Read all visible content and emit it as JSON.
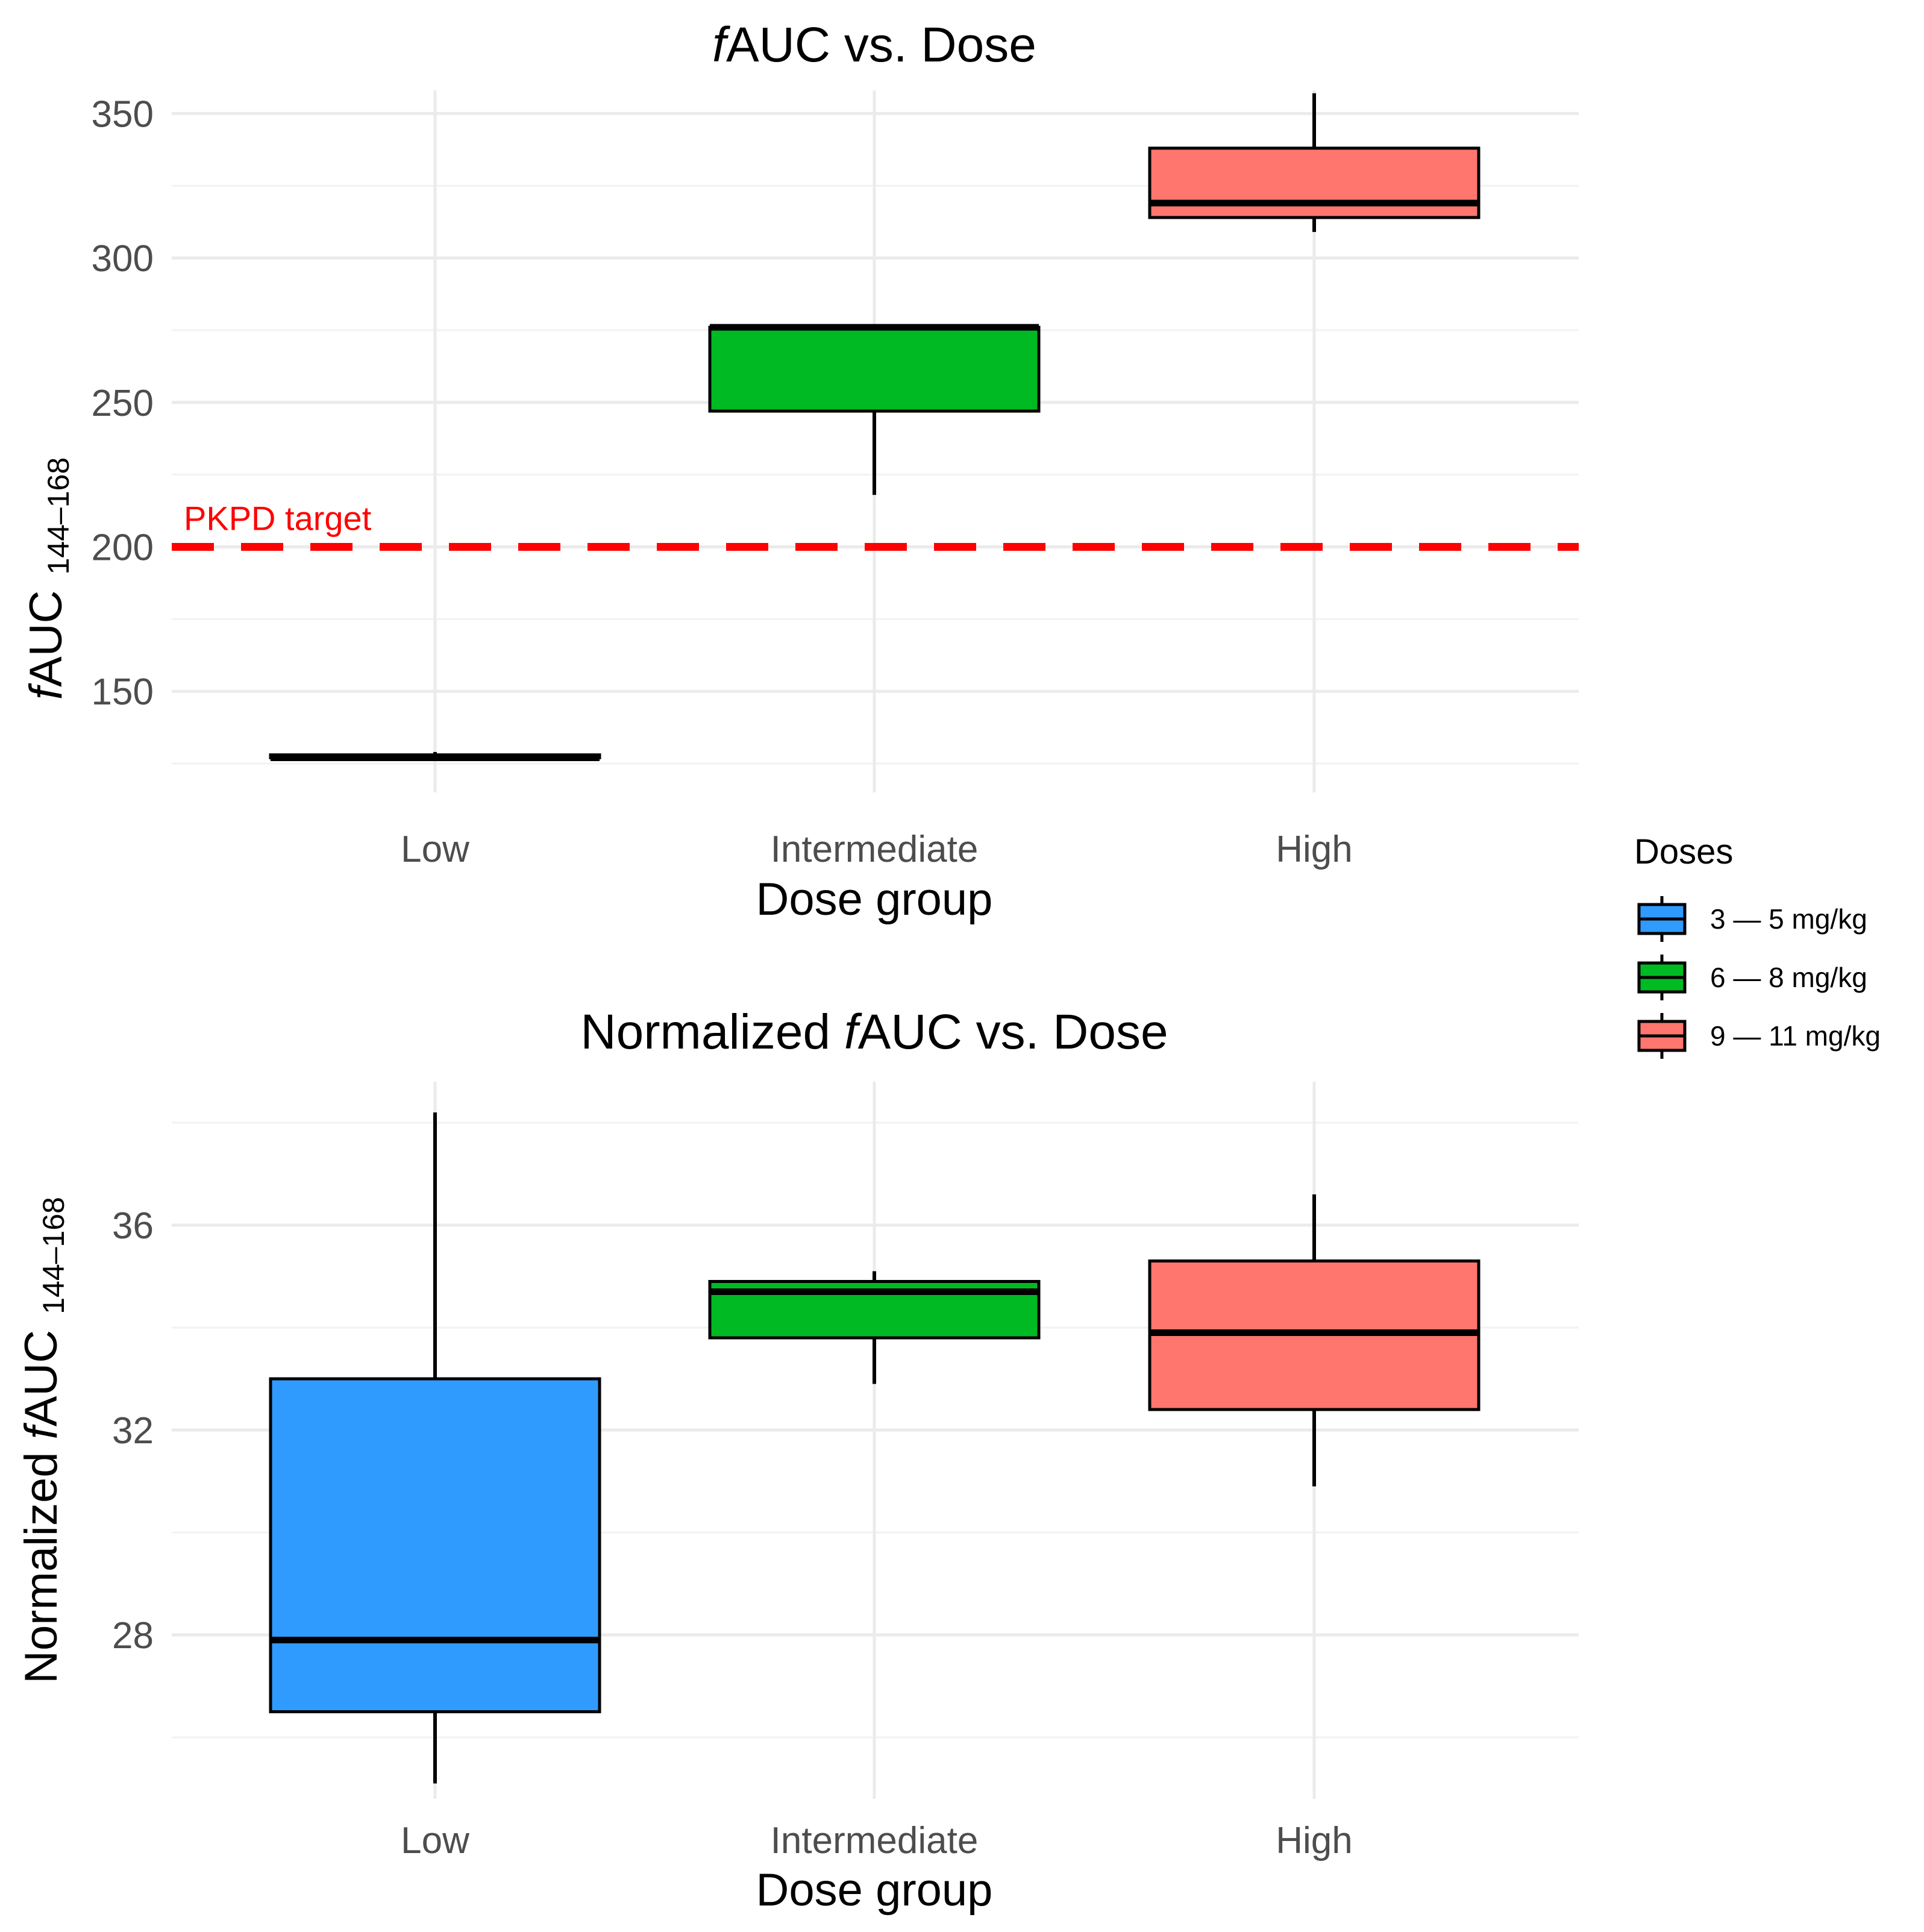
{
  "chart_data": [
    {
      "type": "box",
      "title_prefix": "f",
      "title": "AUC vs. Dose",
      "xlabel": "Dose group",
      "ylabel_prefix": "f",
      "ylabel_main": "AUC",
      "ylabel_sub": "144–168",
      "categories": [
        "Low",
        "Intermediate",
        "High"
      ],
      "ylim": [
        115,
        358
      ],
      "yticks": [
        150,
        200,
        250,
        300,
        350
      ],
      "yminor": [
        125,
        175,
        225,
        275,
        325
      ],
      "boxes": [
        {
          "category": "Low",
          "whisker_low": 127,
          "q1": 127,
          "median": 127,
          "q3": 128,
          "whisker_high": 129
        },
        {
          "category": "Intermediate",
          "whisker_low": 218,
          "q1": 247,
          "median": 276,
          "q3": 276,
          "whisker_high": 276
        },
        {
          "category": "High",
          "whisker_low": 309,
          "q1": 314,
          "median": 319,
          "q3": 338,
          "whisker_high": 357
        }
      ],
      "reference_line": {
        "y": 200,
        "label": "PKPD target",
        "color": "#ff0000"
      }
    },
    {
      "type": "box",
      "title_main": "Normalized ",
      "title_prefix": "f",
      "title": "AUC vs. Dose",
      "xlabel": "Dose group",
      "ylabel_main_pre": "Normalized ",
      "ylabel_prefix": "f",
      "ylabel_main": "AUC",
      "ylabel_sub": "144–168",
      "categories": [
        "Low",
        "Intermediate",
        "High"
      ],
      "ylim": [
        24.8,
        38.8
      ],
      "yticks": [
        28,
        32,
        36
      ],
      "yminor": [
        26,
        30,
        34,
        38
      ],
      "boxes": [
        {
          "category": "Low",
          "whisker_low": 25.1,
          "q1": 26.5,
          "median": 27.9,
          "q3": 33.0,
          "whisker_high": 38.2
        },
        {
          "category": "Intermediate",
          "whisker_low": 32.9,
          "q1": 33.8,
          "median": 34.7,
          "q3": 34.9,
          "whisker_high": 35.1
        },
        {
          "category": "High",
          "whisker_low": 30.9,
          "q1": 32.4,
          "median": 33.9,
          "q3": 35.3,
          "whisker_high": 36.6
        }
      ]
    }
  ],
  "legend": {
    "title": "Doses",
    "items": [
      {
        "label": "3 — 5 mg/kg",
        "color": "#2f9bff"
      },
      {
        "label": "6 — 8 mg/kg",
        "color": "#00ba23"
      },
      {
        "label": "9 — 11 mg/kg",
        "color": "#ff766e"
      }
    ]
  }
}
